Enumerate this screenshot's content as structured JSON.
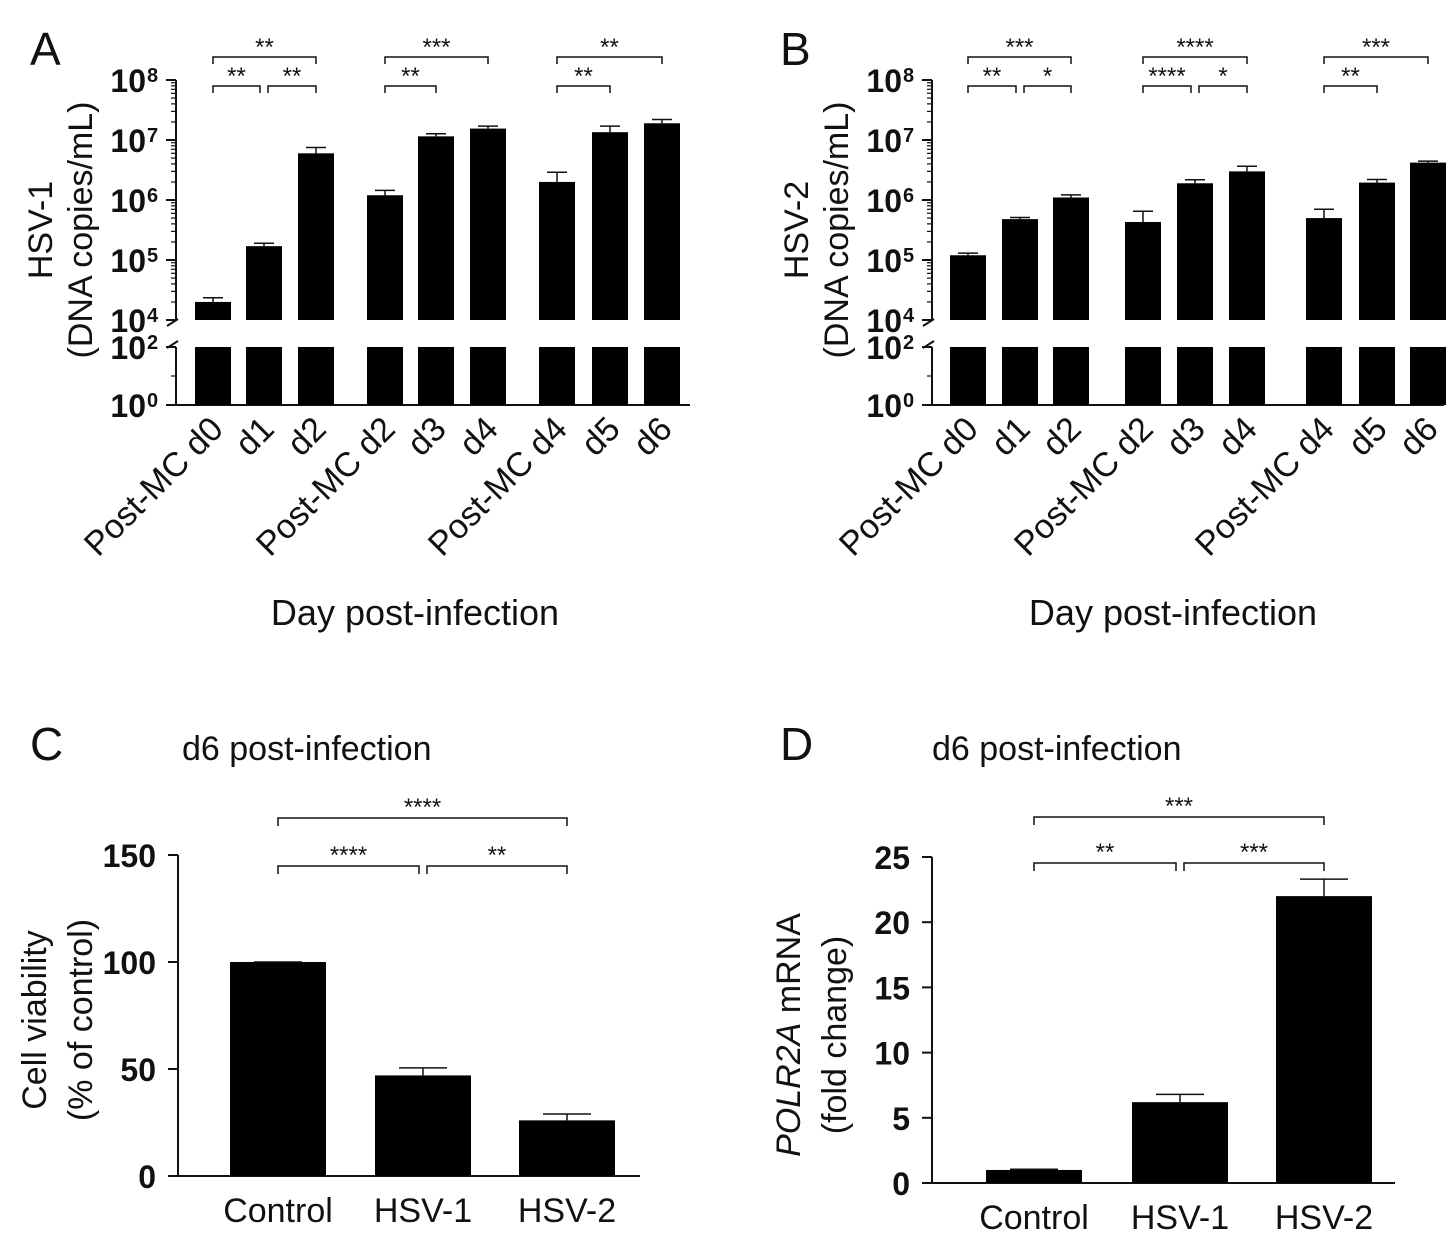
{
  "chart_data": [
    {
      "type": "bar",
      "panel": "A",
      "ylabel": "HSV-1",
      "ylabel2": "(DNA copies/mL)",
      "xlabel": "Day post-infection",
      "yscale": "log-broken",
      "ticks": [
        "10",
        "10",
        "10",
        "10",
        "10",
        "10",
        "10"
      ],
      "tick_exponents": [
        "0",
        "2",
        "4",
        "5",
        "6",
        "7",
        "8"
      ],
      "categories": [
        "Post-MC d0",
        "d1",
        "d2",
        "Post-MC d2",
        "d3",
        "d4",
        "Post-MC d4",
        "d5",
        "d6"
      ],
      "values": [
        20000,
        170000,
        6000000,
        1200000,
        11500000,
        15500000,
        2000000,
        13500000,
        19000000
      ],
      "errors": [
        3500,
        20000,
        1500000,
        250000,
        1200000,
        1500000,
        900000,
        3500000,
        3000000
      ],
      "significance": [
        {
          "label": "**",
          "from": 0,
          "to": 1,
          "level": 0
        },
        {
          "label": "**",
          "from": 1,
          "to": 2,
          "level": 0
        },
        {
          "label": "**",
          "from": 0,
          "to": 2,
          "level": 1
        },
        {
          "label": "**",
          "from": 3,
          "to": 4,
          "level": 0
        },
        {
          "label": "***",
          "from": 3,
          "to": 5,
          "level": 1
        },
        {
          "label": "**",
          "from": 6,
          "to": 7,
          "level": 0
        },
        {
          "label": "**",
          "from": 6,
          "to": 8,
          "level": 1
        }
      ]
    },
    {
      "type": "bar",
      "panel": "B",
      "ylabel": "HSV-2",
      "ylabel2": "(DNA copies/mL)",
      "xlabel": "Day post-infection",
      "yscale": "log-broken",
      "ticks": [
        "10",
        "10",
        "10",
        "10",
        "10",
        "10",
        "10"
      ],
      "tick_exponents": [
        "0",
        "2",
        "4",
        "5",
        "6",
        "7",
        "8"
      ],
      "categories": [
        "Post-MC d0",
        "d1",
        "d2",
        "Post-MC d2",
        "d3",
        "d4",
        "Post-MC d4",
        "d5",
        "d6"
      ],
      "values": [
        120000,
        480000,
        1100000,
        430000,
        1900000,
        3000000,
        500000,
        1950000,
        4200000
      ],
      "errors": [
        10000,
        30000,
        120000,
        220000,
        280000,
        650000,
        200000,
        250000,
        250000
      ],
      "significance": [
        {
          "label": "**",
          "from": 0,
          "to": 1,
          "level": 0
        },
        {
          "label": "*",
          "from": 1,
          "to": 2,
          "level": 0
        },
        {
          "label": "***",
          "from": 0,
          "to": 2,
          "level": 1
        },
        {
          "label": "****",
          "from": 3,
          "to": 4,
          "level": 0
        },
        {
          "label": "*",
          "from": 4,
          "to": 5,
          "level": 0
        },
        {
          "label": "****",
          "from": 3,
          "to": 5,
          "level": 1
        },
        {
          "label": "**",
          "from": 6,
          "to": 7,
          "level": 0
        },
        {
          "label": "***",
          "from": 6,
          "to": 8,
          "level": 1
        }
      ]
    },
    {
      "type": "bar",
      "panel": "C",
      "title": "d6 post-infection",
      "ylabel": "Cell viability",
      "ylabel2": "(% of control)",
      "ylim": [
        0,
        150
      ],
      "yticks": [
        0,
        50,
        100,
        150
      ],
      "categories": [
        "Control",
        "HSV-1",
        "HSV-2"
      ],
      "values": [
        100,
        47,
        26
      ],
      "errors": [
        0,
        3.5,
        3
      ],
      "significance": [
        {
          "label": "****",
          "from": 0,
          "to": 1,
          "level": 0
        },
        {
          "label": "**",
          "from": 1,
          "to": 2,
          "level": 0
        },
        {
          "label": "****",
          "from": 0,
          "to": 2,
          "level": 1
        }
      ]
    },
    {
      "type": "bar",
      "panel": "D",
      "title": "d6 post-infection",
      "ylabel_italic": "POLR2A",
      "ylabel": " mRNA",
      "ylabel2": "(fold change)",
      "ylim": [
        0,
        25
      ],
      "yticks": [
        0,
        5,
        10,
        15,
        20,
        25
      ],
      "categories": [
        "Control",
        "HSV-1",
        "HSV-2"
      ],
      "values": [
        1,
        6.2,
        22
      ],
      "errors": [
        0.05,
        0.6,
        1.3
      ],
      "significance": [
        {
          "label": "**",
          "from": 0,
          "to": 1,
          "level": 0
        },
        {
          "label": "***",
          "from": 1,
          "to": 2,
          "level": 0
        },
        {
          "label": "***",
          "from": 0,
          "to": 2,
          "level": 1
        }
      ]
    }
  ]
}
